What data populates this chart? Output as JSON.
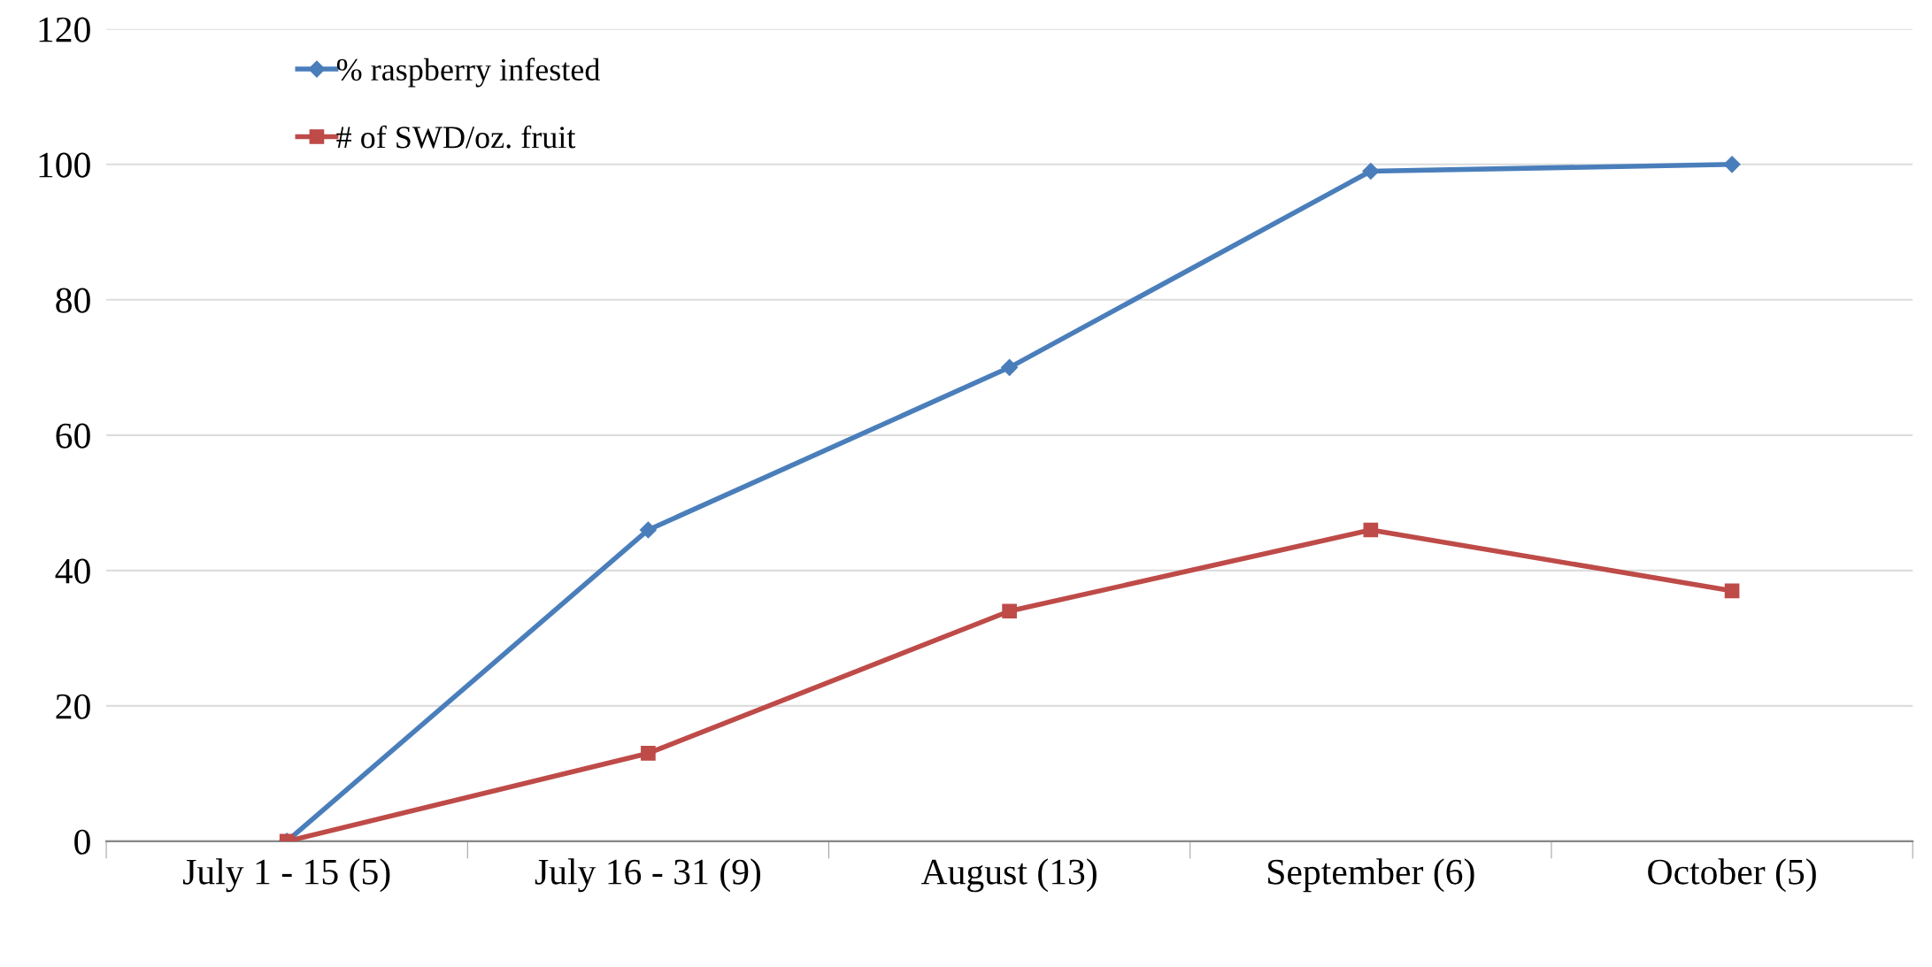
{
  "chart_data": {
    "type": "line",
    "categories": [
      "July 1 - 15 (5)",
      "July 16 - 31 (9)",
      "August (13)",
      "September (6)",
      "October (5)"
    ],
    "series": [
      {
        "name": "% raspberry infested",
        "color": "#4a7ebb",
        "marker": "diamond",
        "values": [
          0,
          46,
          70,
          99,
          100
        ]
      },
      {
        "name": "# of SWD/oz. fruit",
        "color": "#be4b48",
        "marker": "square",
        "values": [
          0,
          13,
          34,
          46,
          37
        ]
      }
    ],
    "ylim": [
      0,
      120
    ],
    "yticks": [
      0,
      20,
      40,
      60,
      80,
      100,
      120
    ],
    "grid": "y",
    "legend": "top left"
  }
}
